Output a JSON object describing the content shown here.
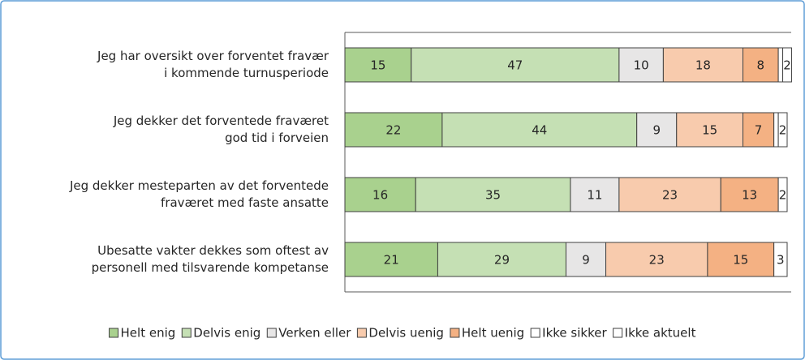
{
  "chart_data": {
    "type": "stacked-bar-horizontal",
    "categories": [
      [
        "Jeg har oversikt over forventet fravær",
        "i kommende turnusperiode"
      ],
      [
        "Jeg dekker det forventede fraværet",
        "god tid i forveien"
      ],
      [
        "Jeg dekker mesteparten av det forventede",
        "fraværet med faste ansatte"
      ],
      [
        "Ubesatte vakter dekkes som oftest av",
        "personell med tilsvarende kompetanse"
      ]
    ],
    "series": [
      {
        "name": "Helt enig",
        "color": "#a9d18e",
        "values": [
          15,
          22,
          16,
          21
        ]
      },
      {
        "name": "Delvis enig",
        "color": "#c5e0b4",
        "values": [
          47,
          44,
          35,
          29
        ]
      },
      {
        "name": "Verken eller",
        "color": "#e7e6e6",
        "values": [
          10,
          9,
          11,
          9
        ]
      },
      {
        "name": "Delvis uenig",
        "color": "#f8cbad",
        "values": [
          18,
          15,
          23,
          23
        ]
      },
      {
        "name": "Helt uenig",
        "color": "#f4b183",
        "values": [
          8,
          7,
          13,
          15
        ]
      },
      {
        "name": "Ikke sikker",
        "color": "#ffffff",
        "values": [
          1,
          1,
          0,
          0
        ]
      },
      {
        "name": "Ikke aktuelt",
        "color": "#ffffff",
        "values": [
          2,
          2,
          2,
          3
        ]
      }
    ],
    "xlim": [
      0,
      100
    ],
    "legend": "bottom"
  }
}
